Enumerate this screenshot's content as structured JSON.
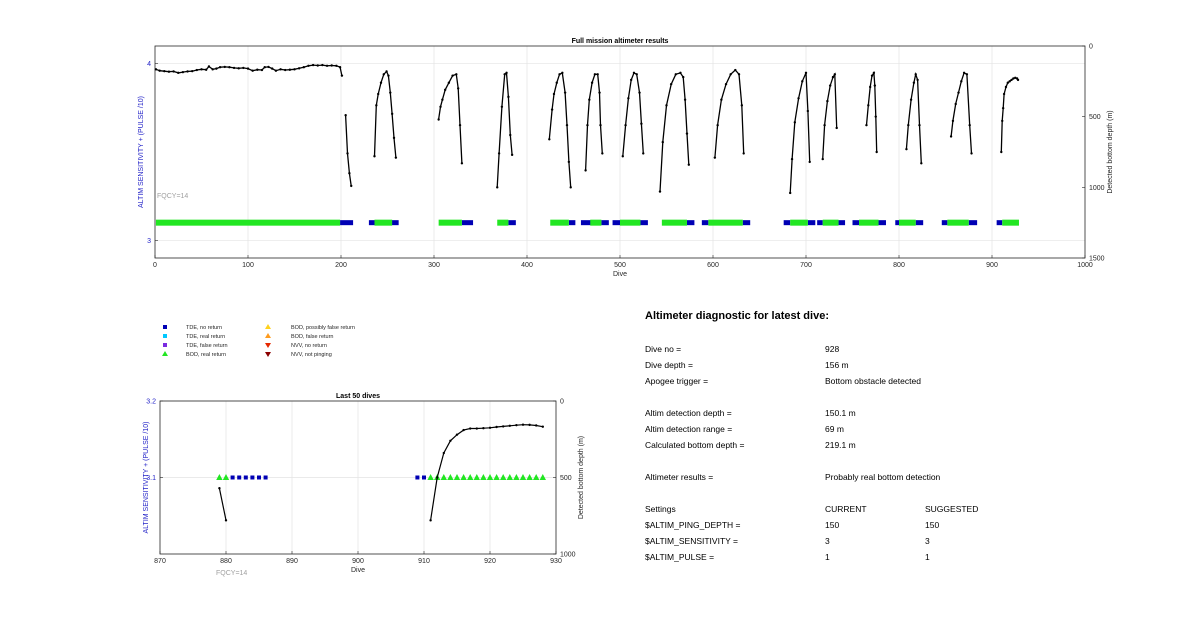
{
  "colors": {
    "tde_no_return": "#0000b4",
    "tde_real_return": "#00c8ff",
    "tde_false_return": "#7a2be0",
    "bod_real_return": "#22e622",
    "bod_possibly_false_return": "#ffd21e",
    "bod_false_return": "#ff9b1e",
    "nvv_no_return": "#e62800",
    "nvv_not_pinging": "#8b0000",
    "depth_line": "#000000",
    "left_axis_text": "#2424c8",
    "fqcy_text": "#a0a0a0"
  },
  "legend": [
    {
      "label": "TDE, no return",
      "icon": "square",
      "color_key": "tde_no_return"
    },
    {
      "label": "TDE, real return",
      "icon": "square",
      "color_key": "tde_real_return"
    },
    {
      "label": "TDE, false return",
      "icon": "square",
      "color_key": "tde_false_return"
    },
    {
      "label": "BOD, real return",
      "icon": "triangle-up",
      "color_key": "bod_real_return"
    },
    {
      "label": "BOD, possibly false return",
      "icon": "triangle-up",
      "color_key": "bod_possibly_false_return"
    },
    {
      "label": "BOD, false return",
      "icon": "triangle-up",
      "color_key": "bod_false_return"
    },
    {
      "label": "NVV, no return",
      "icon": "triangle-down",
      "color_key": "nvv_no_return"
    },
    {
      "label": "NVV, not pinging",
      "icon": "triangle-down",
      "color_key": "nvv_not_pinging"
    }
  ],
  "chart_data": [
    {
      "type": "scatter",
      "title": "Full mission altimeter results",
      "xlabel": "Dive",
      "ylabel_left": "ALTIM SENSITIVITY + (PULSE /10)",
      "ylabel_right": "Detected bottom depth (m)",
      "annotation": "FQCY=14",
      "xlim": [
        0,
        1000
      ],
      "xticks": [
        0,
        100,
        200,
        300,
        400,
        500,
        600,
        700,
        800,
        900,
        1000
      ],
      "ylim_left": [
        2.9,
        4.1
      ],
      "yticks_left": [
        3,
        4
      ],
      "ylim_right": [
        1500,
        0
      ],
      "yticks_right": [
        0,
        500,
        1000,
        1500
      ],
      "grid": true,
      "setting_value": 3.1,
      "bod_segments": [
        [
          1,
          199
        ],
        [
          236,
          255
        ],
        [
          305,
          330
        ],
        [
          368,
          380
        ],
        [
          425,
          445
        ],
        [
          468,
          480
        ],
        [
          500,
          522
        ],
        [
          545,
          572
        ],
        [
          595,
          632
        ],
        [
          683,
          702
        ],
        [
          718,
          735
        ],
        [
          757,
          778
        ],
        [
          800,
          818
        ],
        [
          852,
          875
        ],
        [
          911,
          929
        ]
      ],
      "tde_segments": [
        [
          199,
          213
        ],
        [
          230,
          262
        ],
        [
          330,
          342
        ],
        [
          380,
          388
        ],
        [
          445,
          452
        ],
        [
          458,
          470
        ],
        [
          480,
          488
        ],
        [
          492,
          500
        ],
        [
          522,
          530
        ],
        [
          572,
          580
        ],
        [
          588,
          595
        ],
        [
          632,
          640
        ],
        [
          676,
          683
        ],
        [
          702,
          710
        ],
        [
          712,
          718
        ],
        [
          735,
          742
        ],
        [
          750,
          757
        ],
        [
          778,
          786
        ],
        [
          796,
          800
        ],
        [
          818,
          826
        ],
        [
          846,
          852
        ],
        [
          875,
          884
        ],
        [
          905,
          911
        ]
      ],
      "depth_series": [
        {
          "x": [
            1,
            5,
            10,
            15,
            20,
            25,
            30,
            35,
            40,
            45,
            50,
            55,
            58,
            62,
            66,
            70,
            75,
            80,
            85,
            90,
            95,
            100,
            105,
            110,
            115,
            118,
            122,
            126,
            130,
            135,
            140,
            145,
            150,
            155,
            160,
            165,
            170,
            175,
            180,
            185,
            190,
            195,
            199,
            201
          ],
          "y": [
            165,
            175,
            178,
            182,
            180,
            190,
            185,
            180,
            178,
            170,
            165,
            168,
            145,
            165,
            160,
            150,
            148,
            150,
            155,
            158,
            155,
            160,
            175,
            168,
            170,
            150,
            148,
            160,
            175,
            165,
            170,
            168,
            165,
            158,
            150,
            140,
            135,
            138,
            135,
            140,
            138,
            140,
            150,
            210
          ]
        },
        {
          "x": [
            205,
            207,
            209,
            211
          ],
          "y": [
            490,
            760,
            900,
            990
          ]
        },
        {
          "x": [
            236,
            238,
            240,
            243,
            246,
            249,
            251,
            253,
            255,
            257,
            259
          ],
          "y": [
            780,
            420,
            340,
            260,
            200,
            180,
            210,
            330,
            480,
            650,
            790
          ]
        },
        {
          "x": [
            305,
            307,
            309,
            312,
            316,
            320,
            324,
            326,
            328,
            330
          ],
          "y": [
            520,
            430,
            380,
            310,
            260,
            210,
            200,
            300,
            560,
            830
          ]
        },
        {
          "x": [
            368,
            370,
            373,
            376,
            378,
            380,
            382,
            384
          ],
          "y": [
            1000,
            760,
            430,
            200,
            190,
            360,
            630,
            770
          ]
        },
        {
          "x": [
            424,
            427,
            429,
            432,
            435,
            438,
            441,
            443,
            445,
            447
          ],
          "y": [
            660,
            450,
            340,
            260,
            200,
            190,
            330,
            560,
            820,
            1000
          ]
        },
        {
          "x": [
            463,
            465,
            467,
            470,
            473,
            476,
            478,
            479,
            481
          ],
          "y": [
            880,
            560,
            380,
            260,
            200,
            200,
            330,
            560,
            760
          ]
        },
        {
          "x": [
            503,
            506,
            509,
            512,
            515,
            518,
            521,
            523,
            525
          ],
          "y": [
            780,
            560,
            370,
            240,
            190,
            200,
            330,
            550,
            760
          ]
        },
        {
          "x": [
            543,
            546,
            550,
            555,
            560,
            565,
            568,
            570,
            572,
            574
          ],
          "y": [
            1030,
            680,
            420,
            270,
            200,
            190,
            220,
            380,
            620,
            840
          ]
        },
        {
          "x": [
            602,
            605,
            609,
            614,
            619,
            624,
            628,
            631,
            633
          ],
          "y": [
            790,
            560,
            380,
            270,
            200,
            170,
            200,
            420,
            760
          ]
        },
        {
          "x": [
            683,
            685,
            688,
            692,
            696,
            700,
            702,
            704
          ],
          "y": [
            1040,
            800,
            540,
            370,
            250,
            190,
            460,
            820
          ]
        },
        {
          "x": [
            718,
            720,
            723,
            726,
            729,
            731,
            733
          ],
          "y": [
            800,
            560,
            390,
            280,
            220,
            200,
            580
          ]
        },
        {
          "x": [
            765,
            767,
            769,
            771,
            773,
            774,
            775,
            776
          ],
          "y": [
            560,
            420,
            290,
            210,
            190,
            280,
            500,
            750
          ]
        },
        {
          "x": [
            808,
            810,
            813,
            816,
            818,
            820,
            822,
            824
          ],
          "y": [
            730,
            560,
            380,
            260,
            200,
            240,
            560,
            830
          ]
        },
        {
          "x": [
            856,
            858,
            861,
            864,
            867,
            870,
            873,
            876,
            878
          ],
          "y": [
            640,
            530,
            410,
            330,
            250,
            190,
            200,
            560,
            760
          ]
        },
        {
          "x": [
            910,
            911,
            912,
            913,
            915,
            917,
            919,
            921,
            923,
            925,
            927,
            928
          ],
          "y": [
            750,
            530,
            440,
            340,
            290,
            260,
            250,
            240,
            230,
            225,
            230,
            240
          ]
        }
      ]
    },
    {
      "type": "scatter",
      "title": "Last 50 dives",
      "xlabel": "Dive",
      "ylabel_left": "ALTIM SENSITIVITY + (PULSE /10)",
      "ylabel_right": "Detected bottom depth (m)",
      "annotation": "FQCY=14",
      "xlim": [
        870,
        930
      ],
      "xticks": [
        870,
        880,
        890,
        900,
        910,
        920,
        930
      ],
      "ylim_left": [
        3,
        3.2
      ],
      "yticks_left": [
        3.1,
        3.2
      ],
      "ylim_right": [
        1000,
        0
      ],
      "yticks_right": [
        0,
        500,
        1000
      ],
      "grid": true,
      "setting_value": 3.1,
      "bod_points": [
        879,
        880,
        911,
        912,
        913,
        914,
        915,
        916,
        917,
        918,
        919,
        920,
        921,
        922,
        923,
        924,
        925,
        926,
        927,
        928
      ],
      "tde_points": [
        881,
        882,
        883,
        884,
        885,
        886,
        909,
        910
      ],
      "depth_series": [
        {
          "x": [
            879,
            880
          ],
          "y": [
            570,
            780
          ]
        },
        {
          "x": [
            911,
            912,
            913,
            914,
            915,
            916,
            917,
            918,
            919,
            920,
            921,
            922,
            923,
            924,
            925,
            926,
            927,
            928
          ],
          "y": [
            780,
            500,
            340,
            260,
            220,
            190,
            180,
            180,
            178,
            175,
            170,
            166,
            162,
            158,
            155,
            156,
            160,
            168
          ]
        }
      ]
    }
  ],
  "diagnostic": {
    "title": "Altimeter diagnostic for latest dive:",
    "dive_no_label": "Dive no =",
    "dive_no_value": "928",
    "dive_depth_label": "Dive depth =",
    "dive_depth_value": "156 m",
    "apogee_label": "Apogee trigger =",
    "apogee_value": "Bottom obstacle detected",
    "altim_det_depth_label": "Altim detection depth =",
    "altim_det_depth_value": "150.1 m",
    "altim_det_range_label": "Altim detection range =",
    "altim_det_range_value": "69 m",
    "calc_bottom_label": "Calculated bottom depth =",
    "calc_bottom_value": "219.1 m",
    "results_label": "Altimeter results =",
    "results_value": "Probably real bottom detection",
    "settings_label": "Settings",
    "current_label": "CURRENT",
    "suggested_label": "SUGGESTED",
    "ping_depth_label": "$ALTIM_PING_DEPTH =",
    "ping_depth_current": "150",
    "ping_depth_suggested": "150",
    "sensitivity_label": "$ALTIM_SENSITIVITY =",
    "sensitivity_current": "3",
    "sensitivity_suggested": "3",
    "pulse_label": "$ALTIM_PULSE =",
    "pulse_current": "1",
    "pulse_suggested": "1"
  }
}
